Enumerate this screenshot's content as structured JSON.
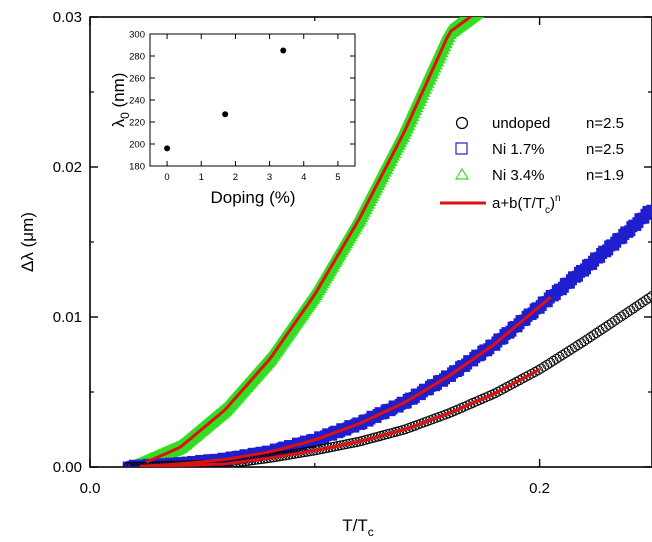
{
  "chart_data": [
    {
      "type": "scatter",
      "xlabel_main": "T/T",
      "xlabel_sub": "c",
      "ylabel_prefix": "Δλ (",
      "ylabel_unit": "μm",
      "ylabel_suffix": ")",
      "xlim": [
        0.0,
        0.25
      ],
      "ylim": [
        0.0,
        0.03
      ],
      "xticks": [
        0.0,
        0.2
      ],
      "xtick_labels": [
        "0.0",
        "0.2"
      ],
      "yticks": [
        0.0,
        0.01,
        0.02,
        0.03
      ],
      "ytick_labels": [
        "0.00",
        "0.01",
        "0.02",
        "0.03"
      ],
      "grid": false,
      "legend_position": "right",
      "series": [
        {
          "name": "undoped",
          "n_label": "n=2.5",
          "marker": "circle",
          "color": "#000000",
          "x": [
            0.017,
            0.04,
            0.06,
            0.08,
            0.1,
            0.12,
            0.14,
            0.16,
            0.18,
            0.2,
            0.22,
            0.24,
            0.25
          ],
          "y": [
            0.0,
            0.0001,
            0.0002,
            0.0006,
            0.0011,
            0.0017,
            0.0025,
            0.0036,
            0.0049,
            0.0065,
            0.0084,
            0.0104,
            0.0114
          ]
        },
        {
          "name": "Ni 1.7%",
          "n_label": "n=2.5",
          "marker": "square",
          "color": "#1f1fcc",
          "x": [
            0.017,
            0.04,
            0.06,
            0.08,
            0.1,
            0.12,
            0.14,
            0.16,
            0.18,
            0.2,
            0.22,
            0.24,
            0.25
          ],
          "y": [
            0.0,
            0.0002,
            0.0005,
            0.001,
            0.0018,
            0.0029,
            0.0043,
            0.0061,
            0.0082,
            0.0107,
            0.0132,
            0.0158,
            0.0172
          ]
        },
        {
          "name": "Ni 3.4%",
          "n_label": "n=1.9",
          "marker": "triangle",
          "color": "#33dd22",
          "x": [
            0.02,
            0.04,
            0.06,
            0.08,
            0.1,
            0.12,
            0.14,
            0.16,
            0.18
          ],
          "y": [
            0.0,
            0.0013,
            0.0038,
            0.0072,
            0.0115,
            0.0166,
            0.0224,
            0.029,
            0.0312
          ]
        }
      ],
      "fit": {
        "name": "a+b(T/T",
        "sub": "c",
        "close": ")",
        "sup": "n",
        "color": "#e01010"
      }
    },
    {
      "type": "scatter",
      "xlabel": "Doping (%)",
      "ylabel_main": "λ",
      "ylabel_sub": "0",
      "ylabel_rest": " (nm)",
      "xlim": [
        -0.5,
        5.5
      ],
      "ylim": [
        180,
        300
      ],
      "xticks": [
        0,
        1,
        2,
        3,
        4,
        5
      ],
      "yticks": [
        180,
        200,
        220,
        240,
        260,
        280,
        300
      ],
      "x": [
        0,
        1.7,
        3.4
      ],
      "y": [
        196,
        227,
        285
      ]
    }
  ]
}
